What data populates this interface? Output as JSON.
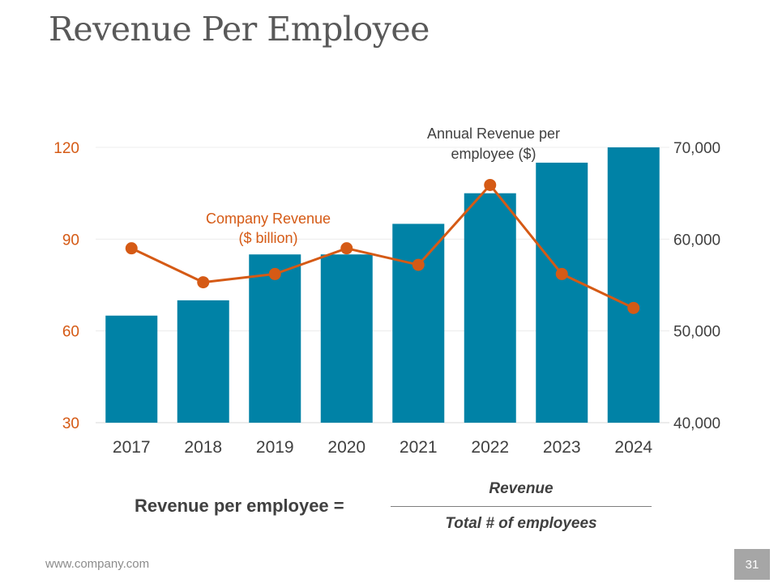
{
  "title": "Revenue Per Employee",
  "chart_data": {
    "type": "bar",
    "categories": [
      "2017",
      "2018",
      "2019",
      "2020",
      "2021",
      "2022",
      "2023",
      "2024"
    ],
    "series": [
      {
        "name": "Company Revenue ($ billion)",
        "kind": "bar",
        "axis": "left",
        "color": "#0082a6",
        "values": [
          65,
          70,
          85,
          85,
          95,
          105,
          115,
          120
        ]
      },
      {
        "name": "Annual Revenue per employee ($)",
        "kind": "line",
        "axis": "right",
        "color": "#d55a15",
        "values": [
          59000,
          55300,
          56200,
          59000,
          57200,
          65900,
          56200,
          52500
        ]
      }
    ],
    "left_axis": {
      "range": [
        30,
        120
      ],
      "ticks": [
        "30",
        "60",
        "90",
        "120"
      ],
      "color": "#d55a15"
    },
    "right_axis": {
      "range": [
        40000,
        70000
      ],
      "ticks": [
        "40,000",
        "50,000",
        "60,000",
        "70,000"
      ],
      "color": "#404040"
    },
    "annotations": {
      "company_revenue": [
        "Company Revenue",
        "($ billion)"
      ],
      "revenue_per_employee": [
        "Annual Revenue per",
        "employee ($)"
      ]
    },
    "grid": true
  },
  "formula": {
    "label": "Revenue per employee =",
    "numerator": "Revenue",
    "denominator": "Total # of employees"
  },
  "footer": {
    "website": "www.company.com",
    "page_number": "31"
  }
}
